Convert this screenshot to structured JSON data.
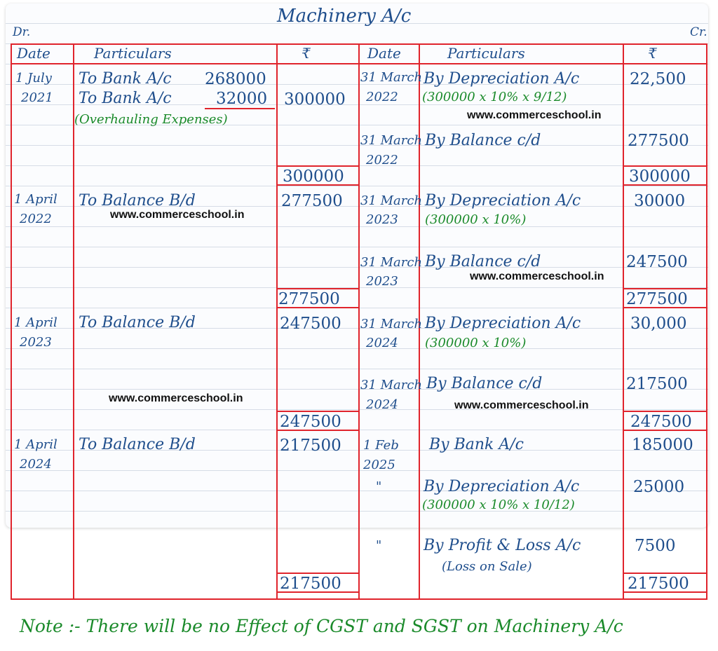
{
  "title": "Machinery A/c",
  "dr_label": "Dr.",
  "cr_label": "Cr.",
  "headers": {
    "dr_date": "Date",
    "dr_particulars": "Particulars",
    "dr_amount": "₹",
    "cr_date": "Date",
    "cr_particulars": "Particulars",
    "cr_amount": "₹"
  },
  "debit": [
    {
      "date1": "1 July",
      "date2": "2021",
      "line1": "To Bank A/c",
      "line1_amt": "268000",
      "line2": "To Bank A/c",
      "line2_amt": "32000",
      "line3": "(Overhauling Expenses)",
      "amount": "300000",
      "total": "300000"
    },
    {
      "date1": "1 April",
      "date2": "2022",
      "line1": "To Balance B/d",
      "amount": "277500",
      "total": "277500"
    },
    {
      "date1": "1 April",
      "date2": "2023",
      "line1": "To Balance B/d",
      "amount": "247500",
      "total": "247500"
    },
    {
      "date1": "1 April",
      "date2": "2024",
      "line1": "To Balance B/d",
      "amount": "217500",
      "total": "217500"
    }
  ],
  "credit": [
    {
      "dep_date1": "31 March",
      "dep_date2": "2022",
      "dep_text": "By Depreciation A/c",
      "dep_calc": "(300000 x 10% x 9/12)",
      "dep_amt": "22,500",
      "bal_date1": "31 March",
      "bal_date2": "2022",
      "bal_text": "By Balance c/d",
      "bal_amt": "277500",
      "total": "300000"
    },
    {
      "dep_date1": "31 March",
      "dep_date2": "2023",
      "dep_text": "By Depreciation A/c",
      "dep_calc": "(300000 x 10%)",
      "dep_amt": "30000",
      "bal_date1": "31 March",
      "bal_date2": "2023",
      "bal_text": "By Balance c/d",
      "bal_amt": "247500",
      "total": "277500"
    },
    {
      "dep_date1": "31 March",
      "dep_date2": "2024",
      "dep_text": "By Depreciation A/c",
      "dep_calc": "(300000 x 10%)",
      "dep_amt": "30,000",
      "bal_date1": "31 March",
      "bal_date2": "2024",
      "bal_text": "By Balance c/d",
      "bal_amt": "217500",
      "total": "247500"
    },
    {
      "bank_date1": "1 Feb",
      "bank_date2": "2025",
      "bank_text": "By Bank A/c",
      "bank_amt": "185000",
      "dep_date": "\"",
      "dep_text": "By Depreciation A/c",
      "dep_calc": "(300000 x 10% x 10/12)",
      "dep_amt": "25000",
      "pl_date": "\"",
      "pl_text": "By Profit & Loss A/c",
      "pl_note": "(Loss on Sale)",
      "pl_amt": "7500",
      "total": "217500"
    }
  ],
  "watermark": "www.commerceschool.in",
  "note": "Note :- There will be no Effect of CGST and SGST on Machinery A/c",
  "colors": {
    "ink": "#1f4e8c",
    "green_ink": "#1a8a2a",
    "rule": "#e0242c"
  }
}
